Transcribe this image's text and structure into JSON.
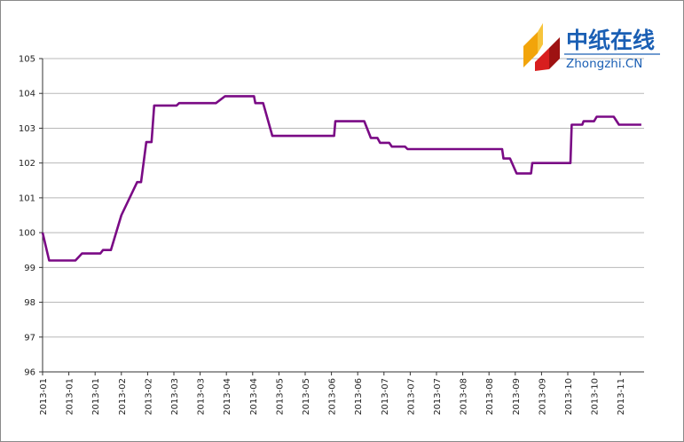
{
  "logo": {
    "name_cn": "中纸在线",
    "name_en": "Zhongzhi.CN"
  },
  "chart_data": {
    "type": "line",
    "title": "",
    "xlabel": "",
    "ylabel": "",
    "ylim": [
      96,
      105
    ],
    "yticks": [
      96,
      97,
      98,
      99,
      100,
      101,
      102,
      103,
      104,
      105
    ],
    "grid": true,
    "line_color": "#7a0a85",
    "x_tick_labels": [
      "2013-01",
      "2013-01",
      "2013-01",
      "2013-02",
      "2013-02",
      "2013-03",
      "2013-03",
      "2013-04",
      "2013-04",
      "2013-05",
      "2013-05",
      "2013-06",
      "2013-06",
      "2013-07",
      "2013-07",
      "2013-07",
      "2013-08",
      "2013-08",
      "2013-09",
      "2013-09",
      "2013-10",
      "2013-10",
      "2013-11"
    ],
    "series": [
      {
        "values": [
          [
            0,
            100.0
          ],
          [
            0.25,
            99.2
          ],
          [
            1.25,
            99.2
          ],
          [
            1.5,
            99.4
          ],
          [
            2.2,
            99.4
          ],
          [
            2.3,
            99.5
          ],
          [
            2.6,
            99.5
          ],
          [
            3.0,
            100.5
          ],
          [
            3.6,
            101.45
          ],
          [
            3.75,
            101.45
          ],
          [
            3.95,
            102.6
          ],
          [
            4.15,
            102.6
          ],
          [
            4.25,
            103.65
          ],
          [
            5.1,
            103.65
          ],
          [
            5.2,
            103.72
          ],
          [
            6.6,
            103.72
          ],
          [
            6.95,
            103.92
          ],
          [
            8.05,
            103.92
          ],
          [
            8.1,
            103.72
          ],
          [
            8.4,
            103.72
          ],
          [
            8.75,
            102.78
          ],
          [
            11.1,
            102.78
          ],
          [
            11.15,
            103.2
          ],
          [
            12.25,
            103.2
          ],
          [
            12.5,
            102.72
          ],
          [
            12.75,
            102.72
          ],
          [
            12.85,
            102.58
          ],
          [
            13.2,
            102.58
          ],
          [
            13.3,
            102.47
          ],
          [
            13.8,
            102.47
          ],
          [
            13.9,
            102.4
          ],
          [
            17.5,
            102.4
          ],
          [
            17.55,
            102.13
          ],
          [
            17.8,
            102.13
          ],
          [
            18.05,
            101.7
          ],
          [
            18.6,
            101.7
          ],
          [
            18.65,
            102.0
          ],
          [
            20.1,
            102.0
          ],
          [
            20.15,
            103.1
          ],
          [
            20.55,
            103.1
          ],
          [
            20.6,
            103.2
          ],
          [
            21.0,
            103.2
          ],
          [
            21.1,
            103.33
          ],
          [
            21.75,
            103.33
          ],
          [
            21.95,
            103.1
          ],
          [
            22.8,
            103.1
          ]
        ]
      }
    ]
  }
}
